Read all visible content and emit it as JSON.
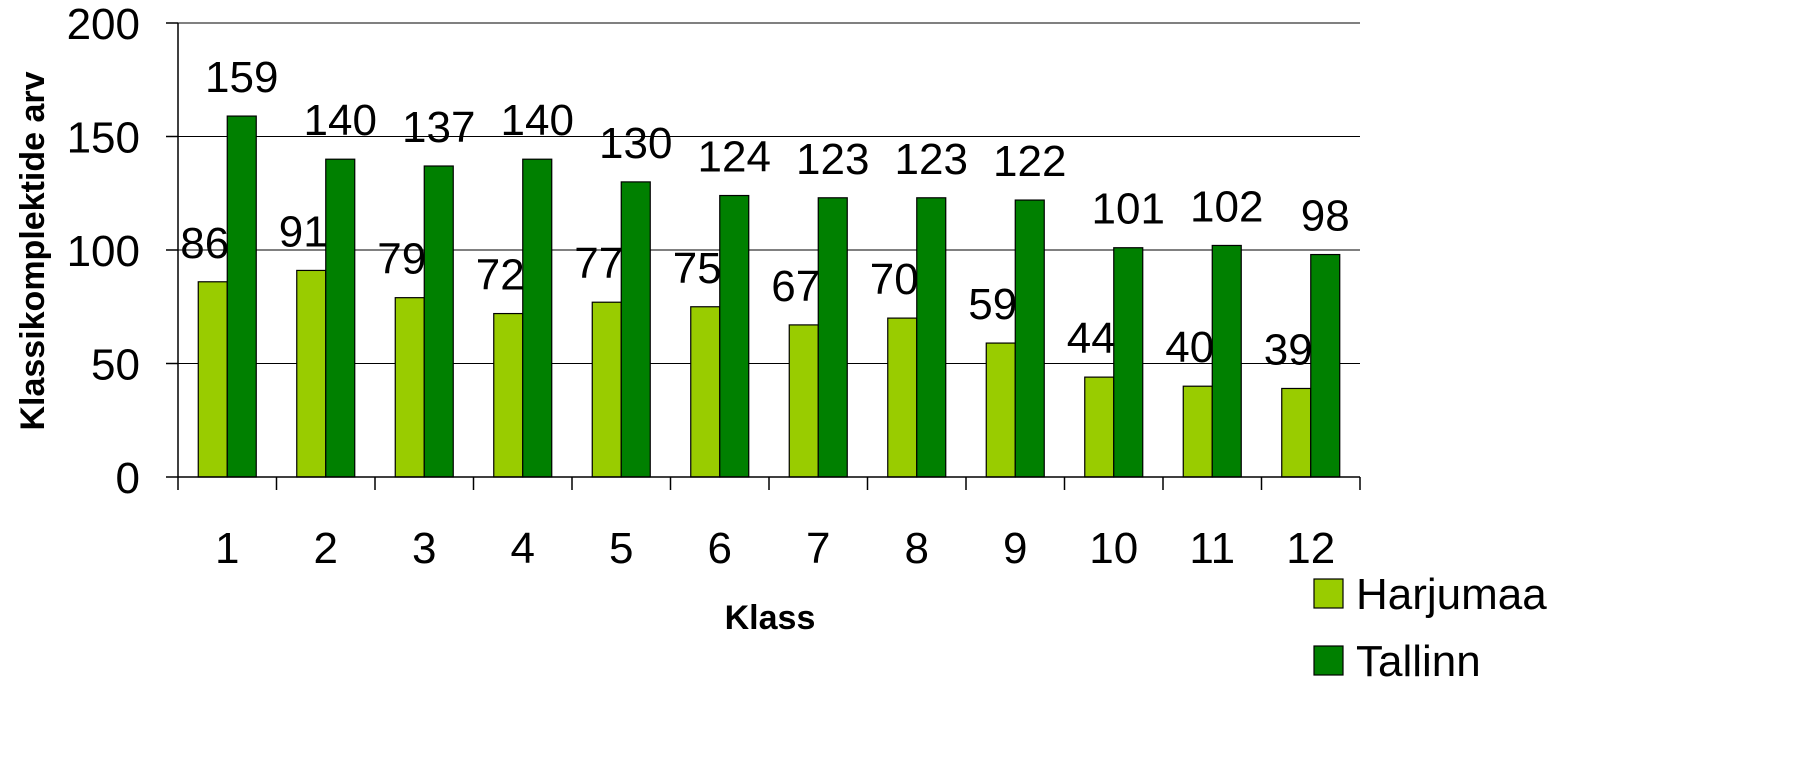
{
  "chart_data": {
    "type": "bar",
    "title": "",
    "xlabel": "Klass",
    "ylabel": "Klassikomplektide arv",
    "ylim": [
      0,
      200
    ],
    "yticks": [
      0,
      50,
      100,
      150,
      200
    ],
    "grid": true,
    "legend_position": "bottom-right",
    "categories": [
      "1",
      "2",
      "3",
      "4",
      "5",
      "6",
      "7",
      "8",
      "9",
      "10",
      "11",
      "12"
    ],
    "series": [
      {
        "name": "Harjumaa",
        "color": "#99cc00",
        "values": [
          86,
          91,
          79,
          72,
          77,
          75,
          67,
          70,
          59,
          44,
          40,
          39
        ]
      },
      {
        "name": "Tallinn",
        "color": "#008000",
        "values": [
          159,
          140,
          137,
          140,
          130,
          124,
          123,
          123,
          122,
          101,
          102,
          98
        ]
      }
    ]
  }
}
